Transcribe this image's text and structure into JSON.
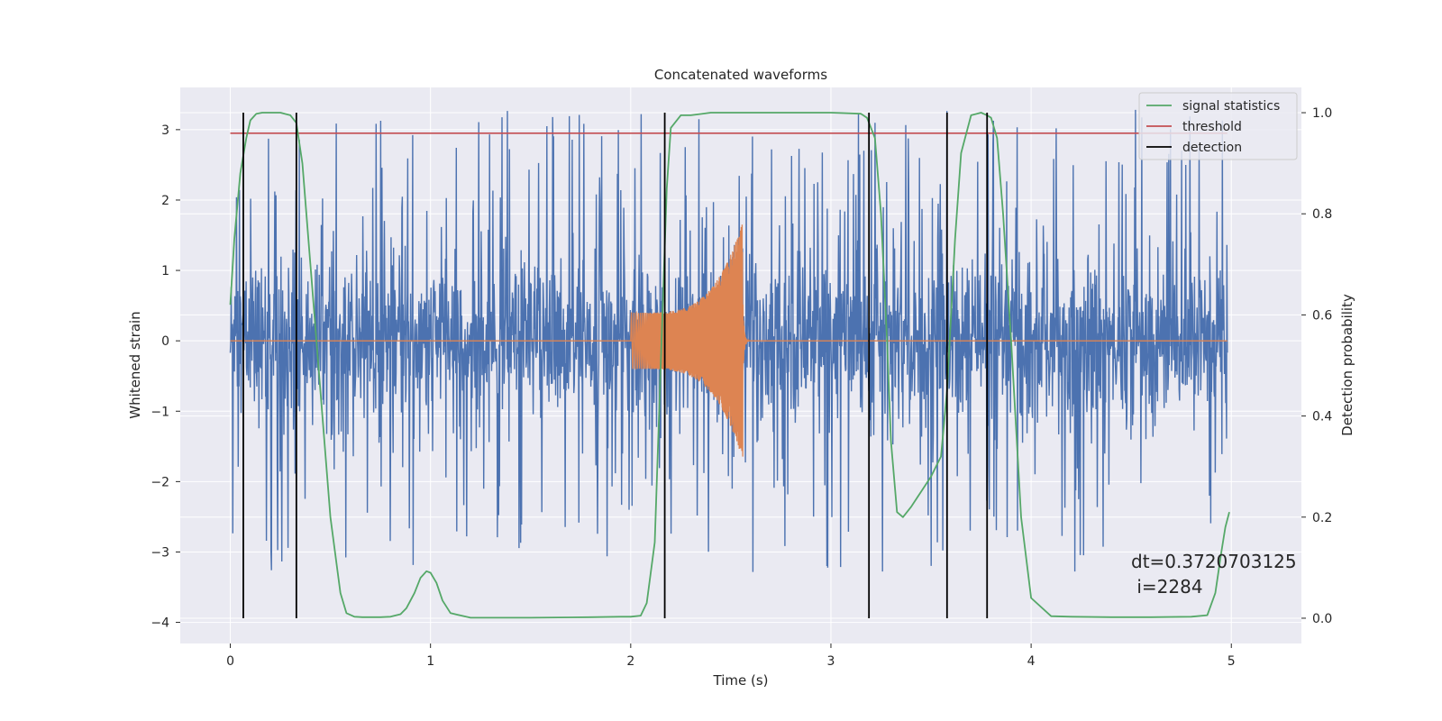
{
  "colors": {
    "plot_bg": "#eaeaf2",
    "grid": "#ffffff",
    "strain_noise": "#4c72b0",
    "injected_waveform": "#dd8452",
    "signal_statistics": "#55a868",
    "threshold": "#c44e52",
    "detection": "#000000",
    "text": "#262626"
  },
  "chart_data": {
    "type": "line",
    "title": "Concatenated waveforms",
    "xlabel": "Time (s)",
    "ylabel": "Whitened strain",
    "y2label": "Detection probability",
    "xlim": [
      -0.25,
      5.35
    ],
    "ylim": [
      -4.3,
      3.6
    ],
    "y2lim": [
      -0.05,
      1.05
    ],
    "xticks": [
      0,
      1,
      2,
      3,
      4,
      5
    ],
    "xtick_labels": [
      "0",
      "1",
      "2",
      "3",
      "4",
      "5"
    ],
    "yticks": [
      -4,
      -3,
      -2,
      -1,
      0,
      1,
      2,
      3
    ],
    "ytick_labels": [
      "−4",
      "−3",
      "−2",
      "−1",
      "0",
      "1",
      "2",
      "3"
    ],
    "y2ticks": [
      0.0,
      0.2,
      0.4,
      0.6,
      0.8,
      1.0
    ],
    "y2tick_labels": [
      "0.0",
      "0.2",
      "0.4",
      "0.6",
      "0.8",
      "1.0"
    ],
    "grid": true,
    "legend_position": "top-right",
    "legend": [
      {
        "label": "signal statistics",
        "color": "#55a868"
      },
      {
        "label": "threshold",
        "color": "#c44e52"
      },
      {
        "label": "detection",
        "color": "#000000"
      }
    ],
    "series": [
      {
        "name": "signal statistics",
        "axis": "right",
        "x": [
          0.0,
          0.02,
          0.05,
          0.08,
          0.1,
          0.13,
          0.16,
          0.2,
          0.25,
          0.3,
          0.33,
          0.36,
          0.4,
          0.45,
          0.5,
          0.55,
          0.58,
          0.62,
          0.66,
          0.7,
          0.75,
          0.8,
          0.85,
          0.88,
          0.92,
          0.95,
          0.98,
          1.0,
          1.03,
          1.06,
          1.1,
          1.2,
          1.5,
          1.8,
          1.95,
          2.0,
          2.05,
          2.08,
          2.12,
          2.15,
          2.18,
          2.2,
          2.25,
          2.3,
          2.4,
          2.6,
          2.8,
          3.0,
          3.15,
          3.18,
          3.22,
          3.25,
          3.28,
          3.3,
          3.33,
          3.36,
          3.4,
          3.45,
          3.5,
          3.55,
          3.58,
          3.62,
          3.65,
          3.7,
          3.75,
          3.78,
          3.8,
          3.83,
          3.86,
          3.9,
          3.95,
          4.0,
          4.1,
          4.2,
          4.4,
          4.6,
          4.8,
          4.88,
          4.92,
          4.95,
          4.97,
          4.99
        ],
        "y": [
          0.62,
          0.75,
          0.88,
          0.95,
          0.985,
          0.998,
          1.0,
          1.0,
          1.0,
          0.995,
          0.98,
          0.9,
          0.7,
          0.45,
          0.2,
          0.05,
          0.01,
          0.003,
          0.002,
          0.002,
          0.002,
          0.003,
          0.008,
          0.02,
          0.05,
          0.08,
          0.093,
          0.09,
          0.07,
          0.035,
          0.01,
          0.001,
          0.001,
          0.002,
          0.003,
          0.003,
          0.005,
          0.03,
          0.15,
          0.5,
          0.85,
          0.97,
          0.995,
          0.995,
          1.0,
          1.0,
          1.0,
          1.0,
          0.998,
          0.99,
          0.95,
          0.8,
          0.55,
          0.35,
          0.21,
          0.2,
          0.22,
          0.25,
          0.28,
          0.32,
          0.45,
          0.75,
          0.92,
          0.995,
          1.0,
          0.995,
          0.99,
          0.95,
          0.8,
          0.55,
          0.2,
          0.04,
          0.004,
          0.003,
          0.002,
          0.002,
          0.003,
          0.006,
          0.05,
          0.13,
          0.18,
          0.21
        ]
      },
      {
        "name": "threshold",
        "axis": "left",
        "x": [
          0.0,
          4.98
        ],
        "y": [
          2.95,
          2.95
        ]
      }
    ],
    "detections_x": [
      0.065,
      0.33,
      2.17,
      3.19,
      3.58,
      3.78
    ],
    "strain_noise": {
      "x_start": 0.0,
      "x_end": 4.98,
      "core_amplitude": 1.0,
      "peak_amplitude": 3.3
    },
    "injected_waveform": {
      "x_start": 2.0,
      "x_end": 2.56,
      "start_amplitude": 0.4,
      "peak_amplitude": 1.7
    },
    "annotation": {
      "line1": "dt=0.3720703125",
      "line2": " i=2284"
    }
  }
}
